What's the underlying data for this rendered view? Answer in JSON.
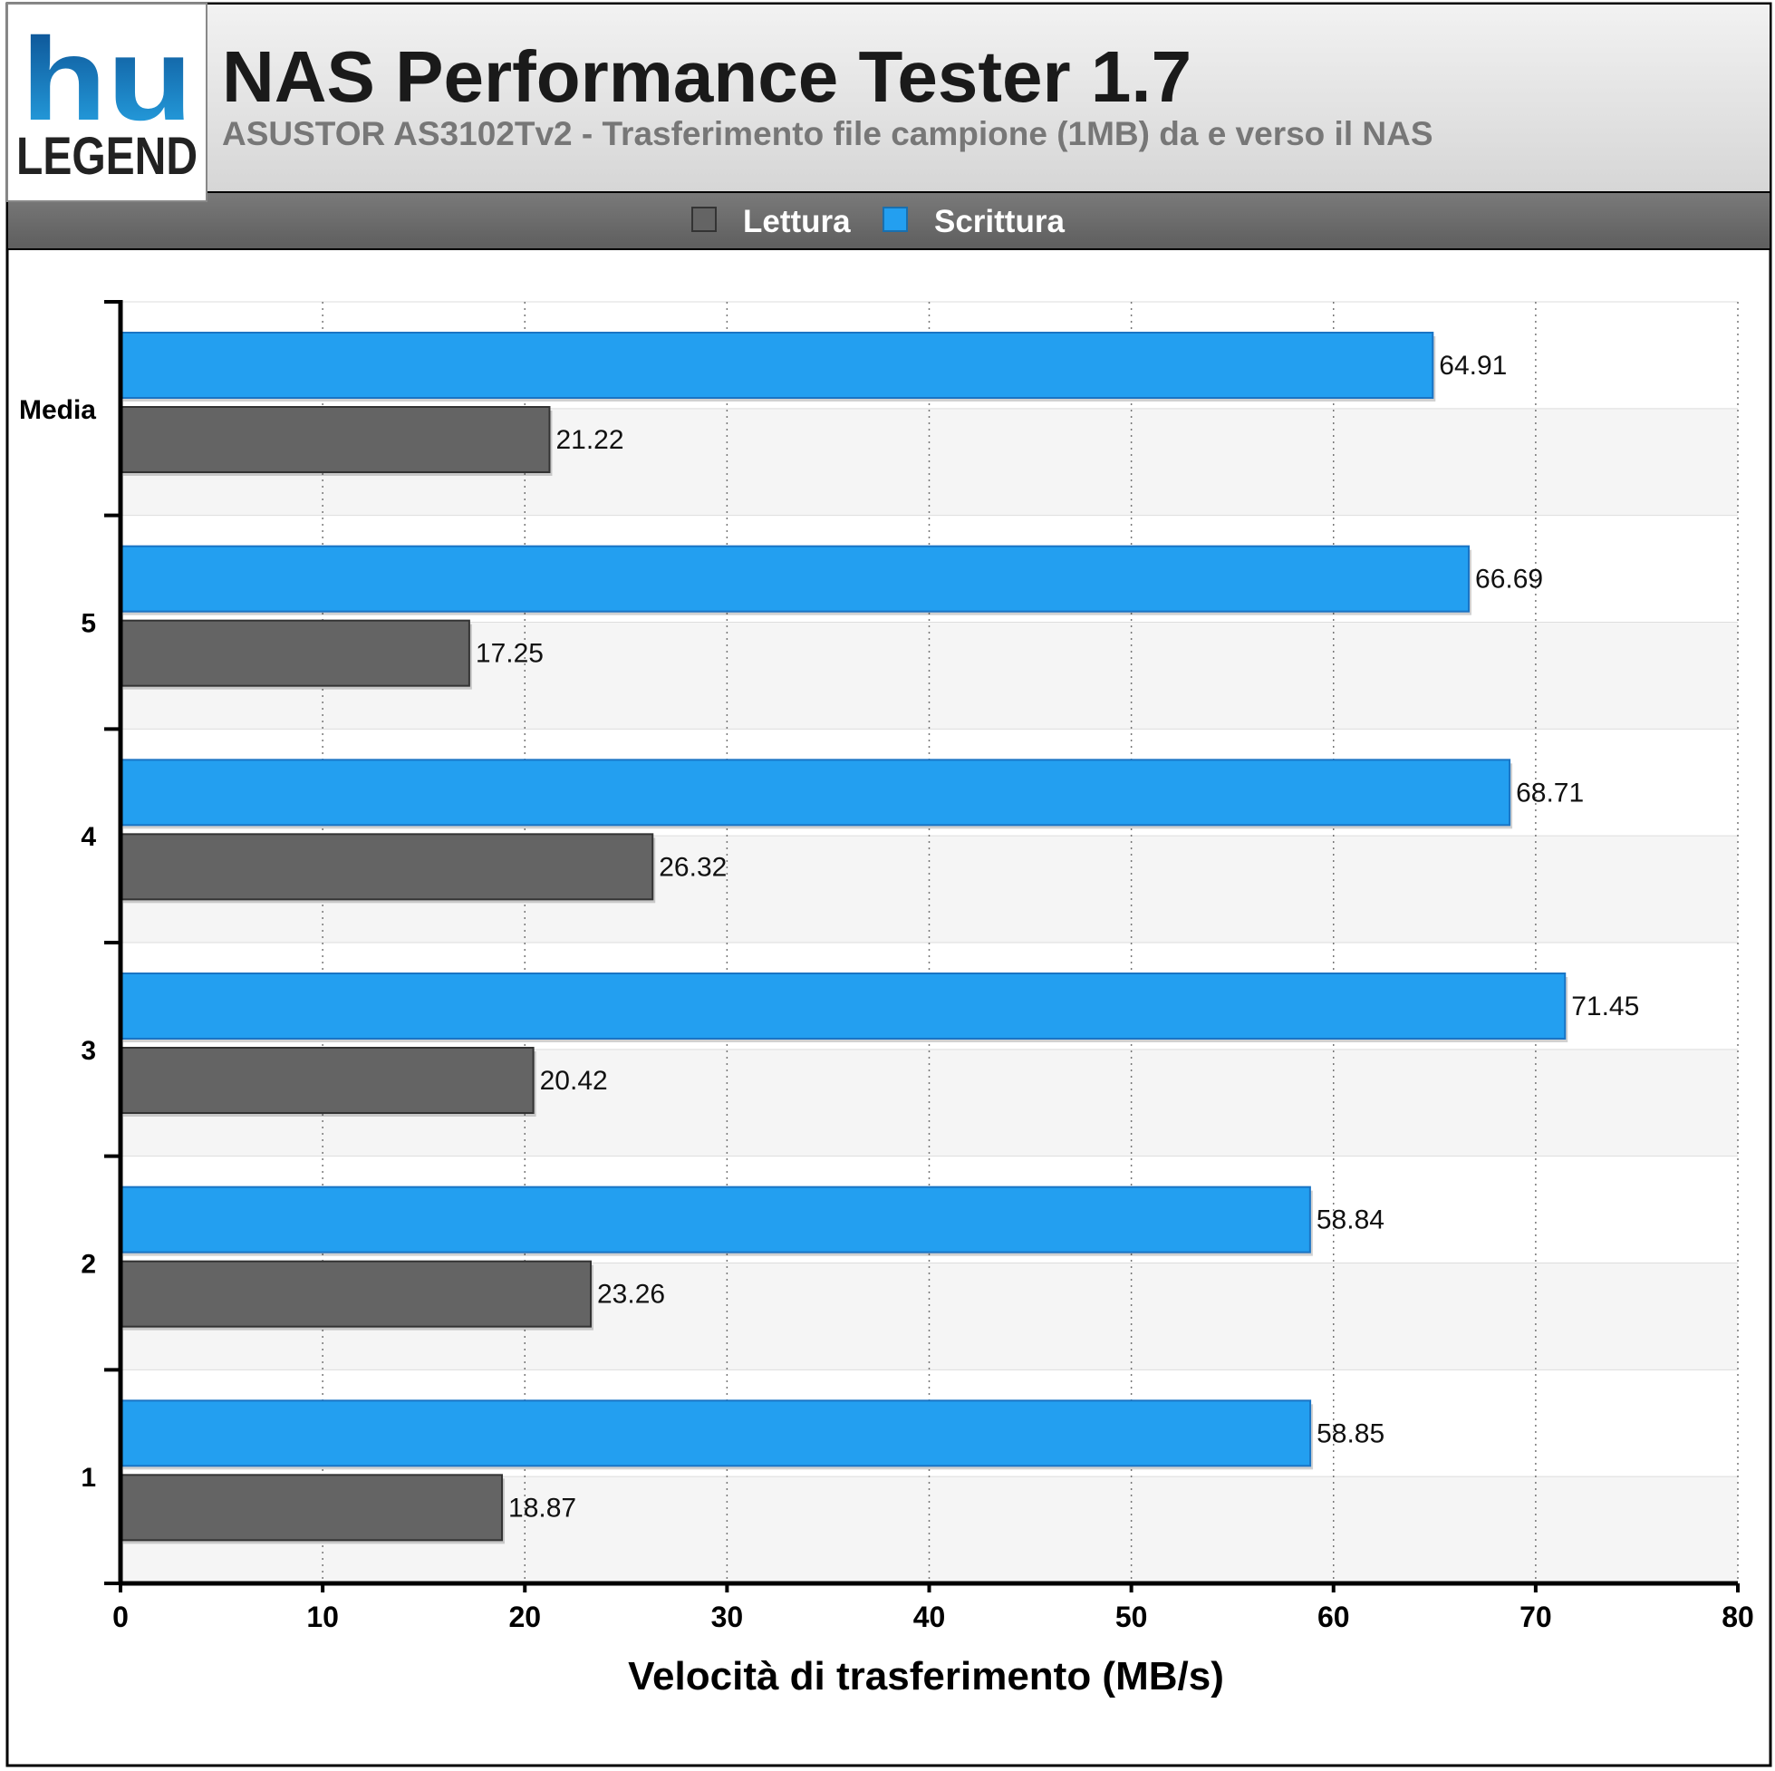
{
  "logo": {
    "mark": "hu",
    "word": "LEGEND"
  },
  "header": {
    "title": "NAS Performance Tester 1.7",
    "subtitle": "ASUSTOR AS3102Tv2 - Trasferimento file campione (1MB) da e verso il NAS"
  },
  "colors": {
    "lettura": "#646464",
    "scrittura": "#239ff0",
    "header_bg": "#e4e4e4",
    "legend_bg": "#6e6e6e",
    "subtitle": "#777777"
  },
  "chart_data": {
    "type": "bar",
    "orientation": "horizontal",
    "categories": [
      "Media",
      "5",
      "4",
      "3",
      "2",
      "1"
    ],
    "series": [
      {
        "name": "Scrittura",
        "values": [
          64.91,
          66.69,
          68.71,
          71.45,
          58.84,
          58.85
        ]
      },
      {
        "name": "Lettura",
        "values": [
          21.22,
          17.25,
          26.32,
          20.42,
          23.26,
          18.87
        ]
      }
    ],
    "legend": [
      "Lettura",
      "Scrittura"
    ],
    "xlabel": "Velocità di trasferimento (MB/s)",
    "xlim": [
      0,
      80
    ],
    "xticks": [
      "0",
      "10",
      "20",
      "30",
      "40",
      "50",
      "60",
      "70",
      "80"
    ],
    "value_labels": [
      [
        "64.91",
        "66.69",
        "68.71",
        "71.45",
        "58.84",
        "58.85"
      ],
      [
        "21.22",
        "17.25",
        "26.32",
        "20.42",
        "23.26",
        "18.87"
      ]
    ],
    "grid": true,
    "legend_position": "top-center"
  }
}
